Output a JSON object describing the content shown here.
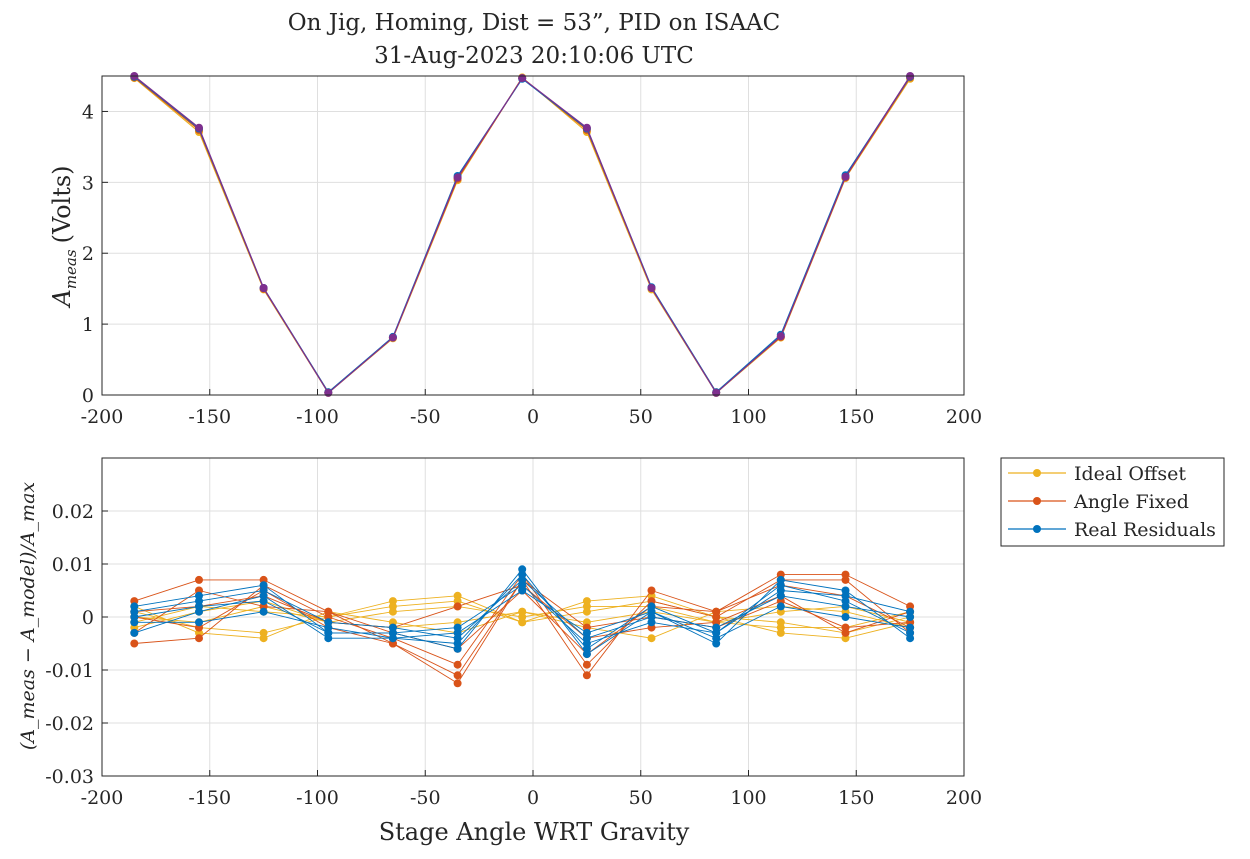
{
  "figure": {
    "title_line1": "On Jig, Homing, Dist = 53”, PID on ISAAC",
    "title_line2": "31-Aug-2023 20:10:06 UTC",
    "top_ylabel_main": "A",
    "top_ylabel_sub": "meas",
    "top_ylabel_unit": "(Volts)",
    "bottom_ylabel": "(A_meas − A_model)/A_max",
    "xlabel": "Stage Angle WRT Gravity",
    "colors": {
      "ideal": "#EDB120",
      "fixed": "#D95319",
      "real": "#0072BD",
      "top_purple": "#7E2F8E",
      "grid": "#dfdfdf",
      "axis": "#262626"
    }
  },
  "chart_data": [
    {
      "type": "line",
      "xlim": [
        -200,
        200
      ],
      "ylim": [
        0,
        4.5
      ],
      "xticks": [
        -200,
        -150,
        -100,
        -50,
        0,
        50,
        100,
        150,
        200
      ],
      "yticks": [
        0,
        1,
        2,
        3,
        4
      ],
      "grid": true,
      "x": [
        -185,
        -155,
        -125,
        -95,
        -65,
        -35,
        -5,
        25,
        55,
        85,
        115,
        145,
        175
      ],
      "series": [
        {
          "color": "#EDB120",
          "values": [
            4.47,
            3.71,
            1.49,
            0.03,
            0.8,
            3.03,
            4.48,
            3.71,
            1.49,
            0.03,
            0.81,
            3.06,
            4.46
          ]
        },
        {
          "color": "#D95319",
          "values": [
            4.48,
            3.74,
            1.5,
            0.04,
            0.81,
            3.05,
            4.47,
            3.74,
            1.51,
            0.04,
            0.82,
            3.07,
            4.48
          ]
        },
        {
          "color": "#0072BD",
          "values": [
            4.49,
            3.76,
            1.51,
            0.04,
            0.82,
            3.09,
            4.46,
            3.76,
            1.52,
            0.04,
            0.85,
            3.1,
            4.49
          ]
        },
        {
          "color": "#7E2F8E",
          "values": [
            4.5,
            3.77,
            1.51,
            0.03,
            0.81,
            3.07,
            4.47,
            3.77,
            1.51,
            0.03,
            0.83,
            3.08,
            4.5
          ]
        }
      ]
    },
    {
      "type": "line",
      "xlim": [
        -200,
        200
      ],
      "ylim": [
        -0.03,
        0.03
      ],
      "xticks": [
        -200,
        -150,
        -100,
        -50,
        0,
        50,
        100,
        150,
        200
      ],
      "yticks": [
        -0.03,
        -0.02,
        -0.01,
        0,
        0.01,
        0.02
      ],
      "grid": true,
      "legend": "outside-right",
      "x": [
        -185,
        -155,
        -125,
        -95,
        -65,
        -35,
        -5,
        25,
        55,
        85,
        115,
        145,
        175
      ],
      "series": [
        {
          "name": "Ideal Offset",
          "color": "#EDB120",
          "values": [
            0.001,
            -0.002,
            -0.003,
            0.0,
            0.003,
            0.004,
            -0.001,
            0.003,
            0.004,
            0.0,
            -0.003,
            -0.004,
            -0.001
          ]
        },
        {
          "color": "#EDB120",
          "values": [
            -0.002,
            0.001,
            0.003,
            -0.001,
            0.001,
            0.002,
            0.0,
            0.002,
            0.002,
            -0.001,
            -0.002,
            -0.002,
            0.001
          ]
        },
        {
          "color": "#EDB120",
          "values": [
            0.002,
            -0.003,
            -0.004,
            0.001,
            -0.001,
            -0.003,
            0.001,
            -0.002,
            -0.004,
            0.001,
            0.002,
            0.001,
            -0.002
          ]
        },
        {
          "color": "#EDB120",
          "values": [
            -0.001,
            0.002,
            0.001,
            0.0,
            0.002,
            0.003,
            -0.001,
            0.001,
            0.003,
            0.0,
            -0.001,
            -0.003,
            0.0
          ]
        },
        {
          "color": "#EDB120",
          "values": [
            0.0,
            -0.001,
            0.002,
            -0.001,
            -0.002,
            -0.001,
            0.001,
            -0.001,
            0.001,
            -0.001,
            0.001,
            0.002,
            -0.001
          ]
        },
        {
          "name": "Angle Fixed",
          "color": "#D95319",
          "values": [
            0.003,
            0.007,
            0.007,
            0.001,
            -0.005,
            -0.0125,
            0.007,
            -0.011,
            0.005,
            0.001,
            0.008,
            0.008,
            0.002
          ]
        },
        {
          "color": "#D95319",
          "values": [
            -0.005,
            -0.004,
            0.006,
            0.0,
            -0.004,
            -0.009,
            0.008,
            -0.009,
            0.003,
            0.0,
            0.007,
            0.007,
            -0.003
          ]
        },
        {
          "color": "#D95319",
          "values": [
            0.001,
            0.002,
            0.004,
            -0.001,
            -0.002,
            0.002,
            0.006,
            -0.004,
            -0.002,
            -0.001,
            0.004,
            -0.003,
            0.001
          ]
        },
        {
          "color": "#D95319",
          "values": [
            -0.003,
            0.005,
            0.002,
            0.001,
            -0.003,
            -0.006,
            0.005,
            -0.007,
            0.002,
            0.001,
            0.006,
            0.004,
            -0.002
          ]
        },
        {
          "color": "#D95319",
          "values": [
            0.0,
            -0.002,
            0.005,
            -0.002,
            -0.005,
            -0.011,
            0.007,
            -0.002,
            0.0,
            -0.002,
            0.003,
            -0.002,
            -0.001
          ]
        },
        {
          "name": "Real Residuals",
          "color": "#0072BD",
          "values": [
            0.002,
            0.004,
            0.006,
            -0.003,
            -0.003,
            -0.006,
            0.009,
            -0.007,
            0.001,
            -0.005,
            0.007,
            0.005,
            -0.004
          ]
        },
        {
          "color": "#0072BD",
          "values": [
            -0.003,
            0.001,
            0.004,
            -0.004,
            -0.004,
            -0.005,
            0.008,
            -0.006,
            0.002,
            -0.003,
            0.006,
            0.003,
            -0.003
          ]
        },
        {
          "color": "#0072BD",
          "values": [
            0.001,
            0.003,
            0.005,
            -0.001,
            -0.002,
            -0.004,
            0.007,
            -0.004,
            0.0,
            -0.002,
            0.004,
            0.002,
            0.0
          ]
        },
        {
          "color": "#0072BD",
          "values": [
            -0.001,
            -0.001,
            0.001,
            -0.002,
            -0.004,
            -0.003,
            0.005,
            -0.003,
            0.001,
            -0.004,
            0.002,
            0.0,
            -0.002
          ]
        },
        {
          "color": "#0072BD",
          "values": [
            0.0,
            0.002,
            0.003,
            -0.003,
            -0.003,
            -0.002,
            0.006,
            -0.005,
            -0.001,
            -0.003,
            0.005,
            0.004,
            0.001
          ]
        }
      ]
    }
  ]
}
